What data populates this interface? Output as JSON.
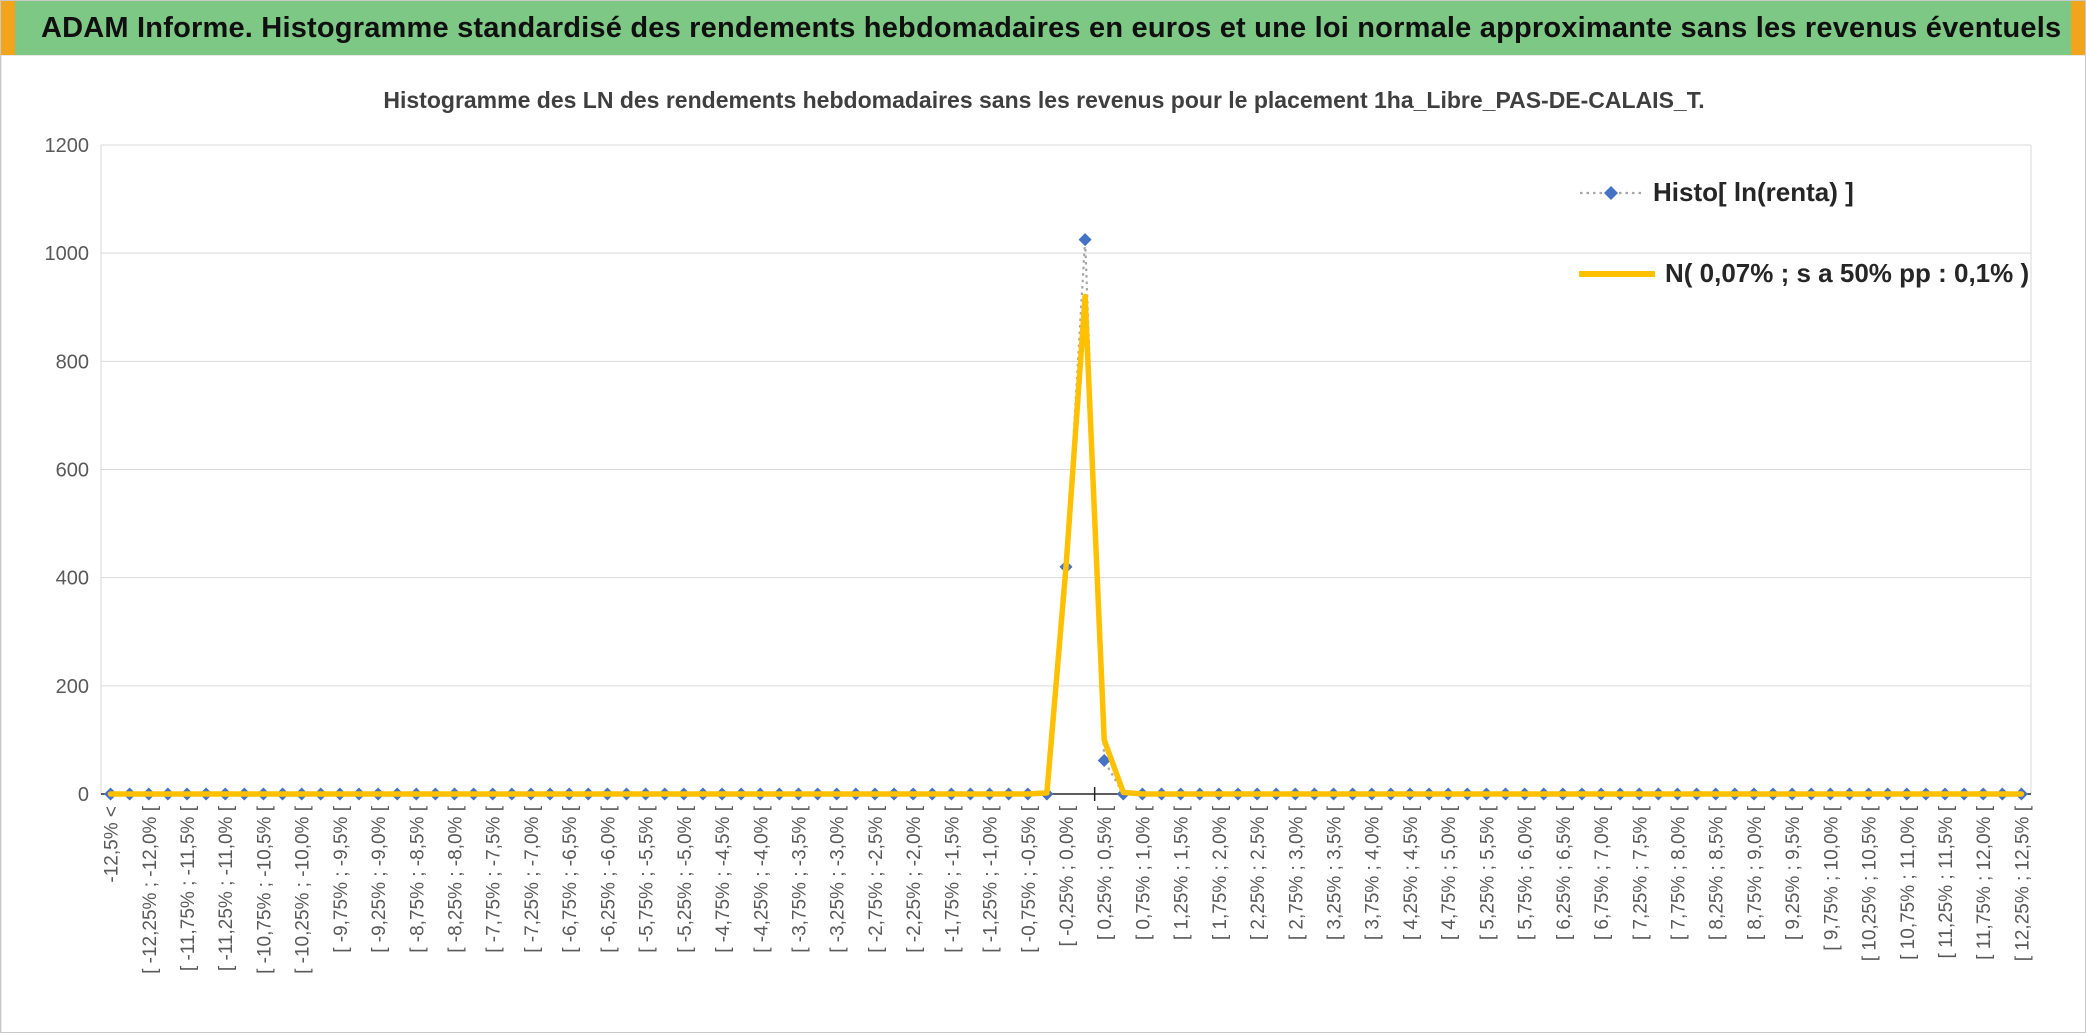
{
  "banner": {
    "text": "ADAM Informe. Histogramme standardisé des rendements hebdomadaires en euros et une loi normale approximante sans les revenus éventuels"
  },
  "colors": {
    "banner_green": "#7cc884",
    "accent_orange": "#f2a41c",
    "histo": "#4472c4",
    "histo_line": "#a6a6a6",
    "normal": "#ffc000",
    "grid": "#d9d9d9",
    "axis": "#262626",
    "tick_text": "#595959",
    "title_text": "#3f3f3f"
  },
  "chart_data": {
    "type": "line",
    "title": "Histogramme des LN des rendements hebdomadaires sans les revenus pour le placement 1ha_Libre_PAS-DE-CALAIS_T.",
    "xlabel": "",
    "ylabel": "",
    "n_bins": 101,
    "bin_width_pct": 0.25,
    "x_tick_step": 2,
    "axis_cross_bin": 52,
    "grid": true,
    "legend_position": "top-right",
    "ylim": [
      0,
      1200
    ],
    "y_ticks": [
      0,
      200,
      400,
      600,
      800,
      1000,
      1200
    ],
    "x_tick_labels": [
      "-12,5% <",
      "[ -12,25% ; -12,0% [",
      "[ -11,75% ; -11,5% [",
      "[ -11,25% ; -11,0% [",
      "[ -10,75% ; -10,5% [",
      "[ -10,25% ; -10,0% [",
      "[ -9,75% ; -9,5% [",
      "[ -9,25% ; -9,0% [",
      "[ -8,75% ; -8,5% [",
      "[ -8,25% ; -8,0% [",
      "[ -7,75% ; -7,5% [",
      "[ -7,25% ; -7,0% [",
      "[ -6,75% ; -6,5% [",
      "[ -6,25% ; -6,0% [",
      "[ -5,75% ; -5,5% [",
      "[ -5,25% ; -5,0% [",
      "[ -4,75% ; -4,5% [",
      "[ -4,25% ; -4,0% [",
      "[ -3,75% ; -3,5% [",
      "[ -3,25% ; -3,0% [",
      "[ -2,75% ; -2,5% [",
      "[ -2,25% ; -2,0% [",
      "[ -1,75% ; -1,5% [",
      "[ -1,25% ; -1,0% [",
      "[ -0,75% ; -0,5% [",
      "[ -0,25% ; 0,0% [",
      "[ 0,25% ; 0,5% [",
      "[ 0,75% ; 1,0% [",
      "[ 1,25% ; 1,5% [",
      "[ 1,75% ; 2,0% [",
      "[ 2,25% ; 2,5% [",
      "[ 2,75% ; 3,0% [",
      "[ 3,25% ; 3,5% [",
      "[ 3,75% ; 4,0% [",
      "[ 4,25% ; 4,5% [",
      "[ 4,75% ; 5,0% [",
      "[ 5,25% ; 5,5% [",
      "[ 5,75% ; 6,0% [",
      "[ 6,25% ; 6,5% [",
      "[ 6,75% ; 7,0% [",
      "[ 7,25% ; 7,5% [",
      "[ 7,75% ; 8,0% [",
      "[ 8,25% ; 8,5% [",
      "[ 8,75% ; 9,0% [",
      "[ 9,25% ; 9,5% [",
      "[ 9,75% ; 10,0% [",
      "[ 10,25% ; 10,5% [",
      "[ 10,75% ; 11,0% [",
      "[ 11,25% ; 11,5% [",
      "[ 11,75% ; 12,0% [",
      "[ 12,25% ; 12,5% ["
    ],
    "series": [
      {
        "name": "Histo[ ln(renta) ]",
        "style": "scatter-dotted",
        "marker": "diamond",
        "default": 0,
        "points": {
          "50": 420,
          "51": 1025,
          "52": 62
        }
      },
      {
        "name": "N( 0,07% ; s a 50% pp : 0,1% )",
        "style": "line",
        "default": 0,
        "points": {
          "49": 2,
          "50": 420,
          "51": 920,
          "52": 100,
          "53": 3
        }
      }
    ]
  }
}
